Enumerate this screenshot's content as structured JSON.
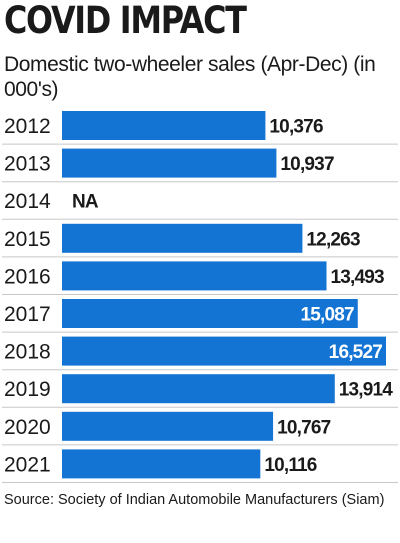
{
  "header": {
    "title": "COVID IMPACT",
    "subtitle": "Domestic two-wheeler sales  (Apr-Dec) (in 000's)"
  },
  "footer": {
    "source": "Source: Society of Indian Automobile Manufacturers (Siam)"
  },
  "colors": {
    "bar": "#1474d4",
    "separator": "#c8c8c8",
    "text": "#1a1a1a",
    "value_inside": "#ffffff"
  },
  "chart_data": {
    "type": "bar",
    "orientation": "horizontal",
    "title": "COVID IMPACT",
    "subtitle": "Domestic two-wheeler sales  (Apr-Dec) (in 000's)",
    "categories": [
      "2012",
      "2013",
      "2014",
      "2015",
      "2016",
      "2017",
      "2018",
      "2019",
      "2020",
      "2021"
    ],
    "values": [
      10376,
      10937,
      null,
      12263,
      13493,
      15087,
      16527,
      13914,
      10767,
      10116
    ],
    "value_labels": [
      "10,376",
      "10,937",
      "NA",
      "12,263",
      "13,493",
      "15,087",
      "16,527",
      "13,914",
      "10,767",
      "10,116"
    ],
    "labels_inside": [
      false,
      false,
      false,
      false,
      false,
      true,
      true,
      false,
      false,
      false
    ],
    "xlim": [
      0,
      16527
    ],
    "grid": false,
    "legend": "none"
  }
}
